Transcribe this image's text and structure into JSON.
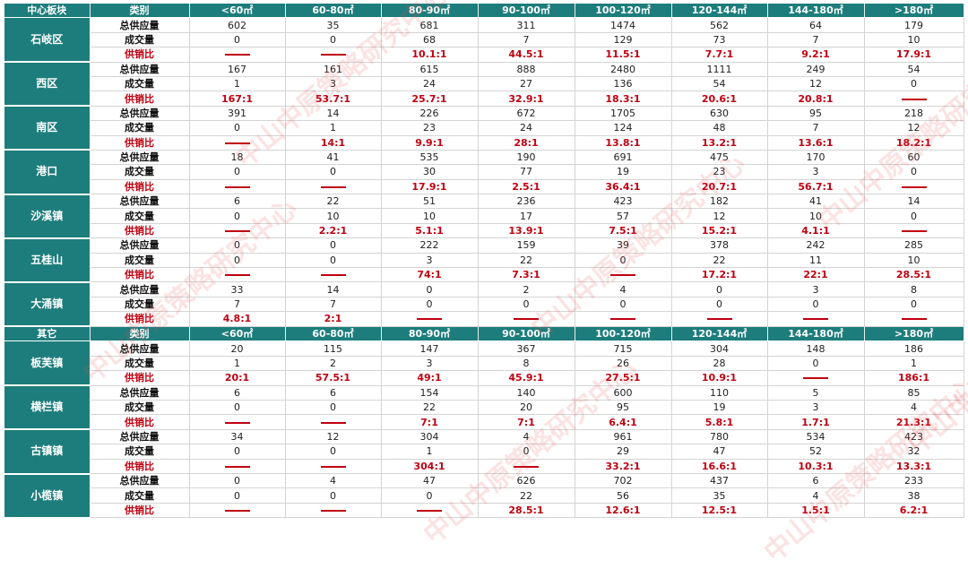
{
  "watermark": "中山中原策略研究中心",
  "colors": {
    "header_bg": "#1d7d7c",
    "ratio_text": "#c00010"
  },
  "row_labels": {
    "supply": "总供应量",
    "deals": "成交量",
    "ratio": "供销比"
  },
  "sections": [
    {
      "header": [
        "中心板块",
        "类别",
        "<60㎡",
        "60-80㎡",
        "80-90㎡",
        "90-100㎡",
        "100-120㎡",
        "120-144㎡",
        "144-180㎡",
        ">180㎡"
      ],
      "regions": [
        {
          "name": "石岐区",
          "supply": [
            "602",
            "35",
            "681",
            "311",
            "1474",
            "562",
            "64",
            "179"
          ],
          "deals": [
            "0",
            "0",
            "68",
            "7",
            "129",
            "73",
            "7",
            "10"
          ],
          "ratio": [
            "—",
            "—",
            "10.1:1",
            "44.5:1",
            "11.5:1",
            "7.7:1",
            "9.2:1",
            "17.9:1"
          ]
        },
        {
          "name": "西区",
          "supply": [
            "167",
            "161",
            "615",
            "888",
            "2480",
            "1111",
            "249",
            "54"
          ],
          "deals": [
            "1",
            "3",
            "24",
            "27",
            "136",
            "54",
            "12",
            "0"
          ],
          "ratio": [
            "167:1",
            "53.7:1",
            "25.7:1",
            "32.9:1",
            "18.3:1",
            "20.6:1",
            "20.8:1",
            "—"
          ]
        },
        {
          "name": "南区",
          "supply": [
            "391",
            "14",
            "226",
            "672",
            "1705",
            "630",
            "95",
            "218"
          ],
          "deals": [
            "0",
            "1",
            "23",
            "24",
            "124",
            "48",
            "7",
            "12"
          ],
          "ratio": [
            "—",
            "14:1",
            "9.9:1",
            "28:1",
            "13.8:1",
            "13.2:1",
            "13.6:1",
            "18.2:1"
          ]
        },
        {
          "name": "港口",
          "supply": [
            "18",
            "41",
            "535",
            "190",
            "691",
            "475",
            "170",
            "60"
          ],
          "deals": [
            "0",
            "0",
            "30",
            "77",
            "19",
            "23",
            "3",
            "0"
          ],
          "ratio": [
            "—",
            "—",
            "17.9:1",
            "2.5:1",
            "36.4:1",
            "20.7:1",
            "56.7:1",
            "—"
          ]
        },
        {
          "name": "沙溪镇",
          "supply": [
            "6",
            "22",
            "51",
            "236",
            "423",
            "182",
            "41",
            "14"
          ],
          "deals": [
            "0",
            "10",
            "10",
            "17",
            "57",
            "12",
            "10",
            "0"
          ],
          "ratio": [
            "—",
            "2.2:1",
            "5.1:1",
            "13.9:1",
            "7.5:1",
            "15.2:1",
            "4.1:1",
            "—"
          ]
        },
        {
          "name": "五桂山",
          "supply": [
            "0",
            "0",
            "222",
            "159",
            "39",
            "378",
            "242",
            "285"
          ],
          "deals": [
            "0",
            "0",
            "3",
            "22",
            "0",
            "22",
            "11",
            "10"
          ],
          "ratio": [
            "—",
            "—",
            "74:1",
            "7.3:1",
            "—",
            "17.2:1",
            "22:1",
            "28.5:1"
          ]
        },
        {
          "name": "大涌镇",
          "supply": [
            "33",
            "14",
            "0",
            "2",
            "4",
            "0",
            "3",
            "8"
          ],
          "deals": [
            "7",
            "7",
            "0",
            "0",
            "0",
            "0",
            "0",
            "0"
          ],
          "ratio": [
            "4.8:1",
            "2:1",
            "—",
            "—",
            "—",
            "—",
            "—",
            "—"
          ]
        }
      ]
    },
    {
      "header": [
        "其它",
        "类别",
        "<60㎡",
        "60-80㎡",
        "80-90㎡",
        "90-100㎡",
        "100-120㎡",
        "120-144㎡",
        "144-180㎡",
        ">180㎡"
      ],
      "regions": [
        {
          "name": "板芙镇",
          "supply": [
            "20",
            "115",
            "147",
            "367",
            "715",
            "304",
            "148",
            "186"
          ],
          "deals": [
            "1",
            "2",
            "3",
            "8",
            "26",
            "28",
            "0",
            "1"
          ],
          "ratio": [
            "20:1",
            "57.5:1",
            "49:1",
            "45.9:1",
            "27.5:1",
            "10.9:1",
            "—",
            "186:1"
          ]
        },
        {
          "name": "横栏镇",
          "supply": [
            "6",
            "6",
            "154",
            "140",
            "600",
            "110",
            "5",
            "85"
          ],
          "deals": [
            "0",
            "0",
            "22",
            "20",
            "95",
            "19",
            "3",
            "4"
          ],
          "ratio": [
            "—",
            "—",
            "7:1",
            "7:1",
            "6.4:1",
            "5.8:1",
            "1.7:1",
            "21.3:1"
          ]
        },
        {
          "name": "古镇镇",
          "supply": [
            "34",
            "12",
            "304",
            "4",
            "961",
            "780",
            "534",
            "423"
          ],
          "deals": [
            "0",
            "0",
            "1",
            "0",
            "29",
            "47",
            "52",
            "32"
          ],
          "ratio": [
            "—",
            "—",
            "304:1",
            "—",
            "33.2:1",
            "16.6:1",
            "10.3:1",
            "13.3:1"
          ]
        },
        {
          "name": "小榄镇",
          "supply": [
            "0",
            "4",
            "47",
            "626",
            "702",
            "437",
            "6",
            "233"
          ],
          "deals": [
            "0",
            "0",
            "0",
            "22",
            "56",
            "35",
            "4",
            "38"
          ],
          "ratio": [
            "—",
            "—",
            "—",
            "28.5:1",
            "12.6:1",
            "12.5:1",
            "1.5:1",
            "6.2:1"
          ]
        }
      ]
    }
  ]
}
